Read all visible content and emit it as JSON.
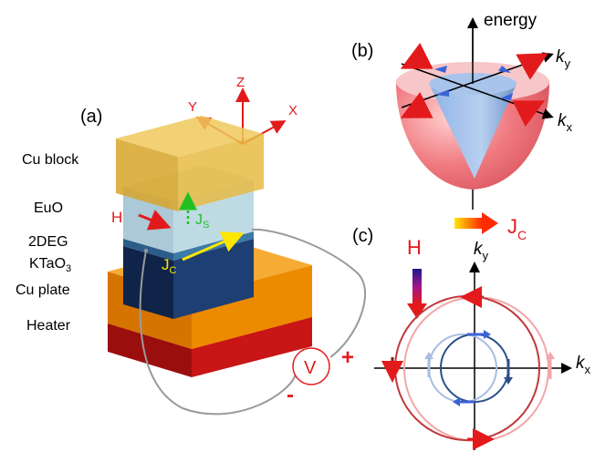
{
  "panel_a": {
    "tag": "(a)",
    "layers": [
      "Cu block",
      "EuO",
      "2DEG",
      "KTaO",
      "Cu plate",
      "Heater"
    ],
    "ktao_subscript": "3",
    "axes": {
      "x": "X",
      "y": "Y",
      "z": "Z"
    },
    "field": "H",
    "current": "J",
    "current_sub": "C",
    "spin_current": "J",
    "spin_current_sub": "S",
    "voltmeter": "V",
    "plus": "+",
    "minus": "-"
  },
  "panel_b": {
    "tag": "(b)",
    "energy": "energy",
    "ky": "k",
    "ky_sub": "y",
    "kx": "k",
    "kx_sub": "x"
  },
  "panel_c": {
    "tag": "(c)",
    "jc": "J",
    "jc_sub": "C",
    "field": "H",
    "ky": "k",
    "ky_sub": "y",
    "kx": "k",
    "kx_sub": "x"
  },
  "colors": {
    "red": "#e31a1c",
    "cu_block": "#e2b23a",
    "cu_plate": "#e08400",
    "heater": "#c81515",
    "blue_layer": "#1e3f73",
    "outer_ring": "#c0393b",
    "inner_ring": "#2c4f8a"
  }
}
